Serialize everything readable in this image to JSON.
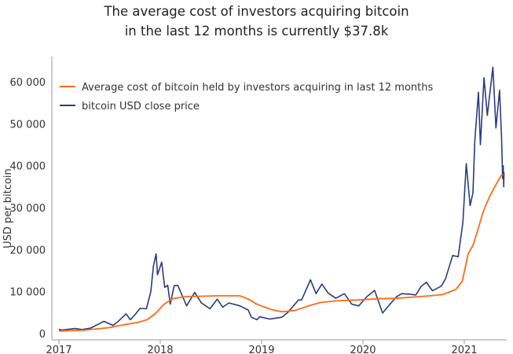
{
  "chart_data": {
    "type": "line",
    "title": [
      "The average cost of investors acquiring bitcoin",
      "in the last 12 months is currently $37.8k"
    ],
    "xlabel": "",
    "ylabel": "USD per bitcoin",
    "x_ticks": [
      "2017",
      "2018",
      "2019",
      "2020",
      "2021"
    ],
    "y_ticks": [
      "0",
      "10 000",
      "20 000",
      "30 000",
      "40 000",
      "50 000",
      "60 000"
    ],
    "ylim": [
      0,
      66000
    ],
    "xlim": [
      "2017-01-01",
      "2021-06-01"
    ],
    "grid": false,
    "legend_position": "top-left",
    "series": [
      {
        "name": "Average cost of bitcoin held by investors acquiring in last 12 months",
        "color": "#ff6a13",
        "points": [
          [
            "2017-01-01",
            600
          ],
          [
            "2017-04-01",
            800
          ],
          [
            "2017-07-01",
            1400
          ],
          [
            "2017-09-01",
            2200
          ],
          [
            "2017-10-15",
            2700
          ],
          [
            "2017-11-15",
            3300
          ],
          [
            "2017-12-15",
            4800
          ],
          [
            "2018-01-15",
            7000
          ],
          [
            "2018-02-15",
            8300
          ],
          [
            "2018-04-01",
            8800
          ],
          [
            "2018-06-01",
            8900
          ],
          [
            "2018-08-01",
            9000
          ],
          [
            "2018-10-15",
            9000
          ],
          [
            "2018-11-15",
            8200
          ],
          [
            "2018-12-15",
            7000
          ],
          [
            "2019-02-01",
            5800
          ],
          [
            "2019-03-15",
            5200
          ],
          [
            "2019-05-01",
            5500
          ],
          [
            "2019-06-15",
            6500
          ],
          [
            "2019-08-01",
            7400
          ],
          [
            "2019-10-01",
            7800
          ],
          [
            "2019-12-15",
            8000
          ],
          [
            "2020-03-01",
            8300
          ],
          [
            "2020-05-01",
            8400
          ],
          [
            "2020-07-01",
            8700
          ],
          [
            "2020-09-01",
            9000
          ],
          [
            "2020-10-15",
            9300
          ],
          [
            "2020-12-01",
            10500
          ],
          [
            "2020-12-25",
            12500
          ],
          [
            "2021-01-15",
            19000
          ],
          [
            "2021-02-01",
            21000
          ],
          [
            "2021-02-20",
            25000
          ],
          [
            "2021-03-10",
            29000
          ],
          [
            "2021-04-01",
            32500
          ],
          [
            "2021-04-25",
            35500
          ],
          [
            "2021-05-15",
            37800
          ],
          [
            "2021-05-22",
            37800
          ]
        ]
      },
      {
        "name": "bitcoin USD close price",
        "color": "#2b3a80",
        "points": [
          [
            "2017-01-01",
            1000
          ],
          [
            "2017-01-12",
            800
          ],
          [
            "2017-02-01",
            1000
          ],
          [
            "2017-03-01",
            1200
          ],
          [
            "2017-03-25",
            950
          ],
          [
            "2017-04-25",
            1300
          ],
          [
            "2017-05-25",
            2300
          ],
          [
            "2017-06-12",
            2900
          ],
          [
            "2017-07-15",
            1950
          ],
          [
            "2017-08-01",
            2800
          ],
          [
            "2017-08-31",
            4700
          ],
          [
            "2017-09-15",
            3300
          ],
          [
            "2017-10-01",
            4400
          ],
          [
            "2017-10-20",
            6000
          ],
          [
            "2017-11-12",
            5900
          ],
          [
            "2017-11-28",
            10000
          ],
          [
            "2017-12-07",
            16000
          ],
          [
            "2017-12-17",
            19000
          ],
          [
            "2017-12-22",
            14000
          ],
          [
            "2018-01-06",
            17000
          ],
          [
            "2018-01-17",
            11000
          ],
          [
            "2018-01-28",
            11500
          ],
          [
            "2018-02-06",
            7000
          ],
          [
            "2018-02-20",
            11400
          ],
          [
            "2018-03-05",
            11500
          ],
          [
            "2018-04-06",
            6600
          ],
          [
            "2018-05-05",
            9800
          ],
          [
            "2018-05-29",
            7300
          ],
          [
            "2018-06-29",
            5900
          ],
          [
            "2018-07-25",
            8200
          ],
          [
            "2018-08-14",
            6300
          ],
          [
            "2018-09-05",
            7300
          ],
          [
            "2018-10-15",
            6600
          ],
          [
            "2018-11-14",
            5600
          ],
          [
            "2018-11-25",
            3900
          ],
          [
            "2018-12-15",
            3300
          ],
          [
            "2018-12-25",
            4000
          ],
          [
            "2019-01-31",
            3450
          ],
          [
            "2019-03-15",
            3900
          ],
          [
            "2019-04-05",
            5000
          ],
          [
            "2019-05-14",
            8000
          ],
          [
            "2019-05-25",
            8000
          ],
          [
            "2019-06-26",
            12800
          ],
          [
            "2019-07-16",
            9500
          ],
          [
            "2019-08-06",
            11800
          ],
          [
            "2019-08-28",
            9700
          ],
          [
            "2019-09-25",
            8400
          ],
          [
            "2019-10-26",
            9500
          ],
          [
            "2019-11-22",
            7000
          ],
          [
            "2019-12-17",
            6600
          ],
          [
            "2020-01-15",
            8800
          ],
          [
            "2020-02-12",
            10300
          ],
          [
            "2020-03-12",
            4900
          ],
          [
            "2020-04-05",
            6800
          ],
          [
            "2020-04-30",
            8700
          ],
          [
            "2020-05-20",
            9500
          ],
          [
            "2020-06-15",
            9400
          ],
          [
            "2020-07-10",
            9200
          ],
          [
            "2020-07-30",
            11300
          ],
          [
            "2020-08-17",
            12200
          ],
          [
            "2020-09-08",
            10200
          ],
          [
            "2020-10-10",
            11300
          ],
          [
            "2020-10-25",
            13000
          ],
          [
            "2020-11-20",
            18600
          ],
          [
            "2020-12-10",
            18300
          ],
          [
            "2020-12-27",
            26500
          ],
          [
            "2021-01-08",
            40500
          ],
          [
            "2021-01-22",
            30500
          ],
          [
            "2021-02-01",
            33500
          ],
          [
            "2021-02-08",
            46000
          ],
          [
            "2021-02-21",
            57500
          ],
          [
            "2021-02-28",
            45000
          ],
          [
            "2021-03-13",
            61000
          ],
          [
            "2021-03-25",
            52000
          ],
          [
            "2021-04-14",
            63500
          ],
          [
            "2021-04-25",
            49000
          ],
          [
            "2021-05-08",
            58000
          ],
          [
            "2021-05-15",
            47000
          ],
          [
            "2021-05-19",
            37000
          ],
          [
            "2021-05-21",
            40000
          ],
          [
            "2021-05-23",
            35000
          ],
          [
            "2021-05-24",
            38500
          ]
        ]
      }
    ]
  }
}
